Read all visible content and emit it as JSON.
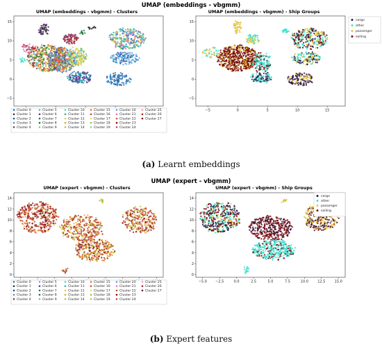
{
  "figure_a": {
    "title": "UMAP (embeddings - vbgmm)",
    "caption_label": "(a)",
    "caption_text": " Learnt embeddings"
  },
  "figure_b": {
    "title": "UMAP (expert - vbgmm)",
    "caption_label": "(b)",
    "caption_text": " Expert features"
  },
  "colors": {
    "cargo": "#2b1647",
    "other": "#3fe0cf",
    "passenger": "#e0c23a",
    "sailing": "#7a0a0a"
  },
  "chart_data": [
    {
      "type": "scatter",
      "id": "emb-clusters",
      "title": "UMAP (embeddings - vbgmm) - Clusters",
      "xlabel": "",
      "ylabel": "",
      "xlim": [
        -7,
        18
      ],
      "ylim": [
        -7,
        16.5
      ],
      "xticks": [
        -5,
        0,
        5,
        10,
        15
      ],
      "yticks": [
        -5,
        0,
        5,
        10,
        15
      ],
      "grid": false,
      "legend_placement": "bottom",
      "legend": [
        "Cluster 0",
        "Cluster 1",
        "Cluster 2",
        "Cluster 3",
        "Cluster 4",
        "Cluster 5",
        "Cluster 6",
        "Cluster 7",
        "Cluster 8",
        "Cluster 9",
        "Cluster 10",
        "Cluster 11",
        "Cluster 12",
        "Cluster 13",
        "Cluster 14",
        "Cluster 15",
        "Cluster 16",
        "Cluster 17",
        "Cluster 18",
        "Cluster 19",
        "Cluster 20",
        "Cluster 21",
        "Cluster 22",
        "Cluster 23",
        "Cluster 24",
        "Cluster 25",
        "Cluster 26",
        "Cluster 27"
      ],
      "legend_colors": [
        "#1f77b4",
        "#2c2c2c",
        "#1a4d7a",
        "#4a90c8",
        "#9b2f2f",
        "#5ab4e0",
        "#6a2f80",
        "#1e7a3a",
        "#2a5d9f",
        "#88cc44",
        "#3fe0cf",
        "#20b2aa",
        "#f5c242",
        "#e8a23a",
        "#c0c030",
        "#f07030",
        "#d04040",
        "#e0e060",
        "#a0c040",
        "#90d060",
        "#60a0e0",
        "#e070c0",
        "#b06030",
        "#8b1010",
        "#c04060",
        "#f0a0d0",
        "#a02020",
        "#7a0a0a"
      ],
      "clusters": [
        {
          "x": -1.5,
          "y": 5.5,
          "rx": 3.2,
          "ry": 3.5,
          "n": 420,
          "colors": [
            "#f07030",
            "#1e7a3a",
            "#5ab4e0",
            "#e8a23a",
            "#9b2f2f",
            "#88cc44"
          ]
        },
        {
          "x": 1.0,
          "y": 5.0,
          "rx": 2.4,
          "ry": 3.2,
          "n": 380,
          "colors": [
            "#f07030",
            "#d04040",
            "#60a0e0",
            "#a0c040",
            "#2a5d9f"
          ]
        },
        {
          "x": 4.0,
          "y": 0.5,
          "rx": 2.0,
          "ry": 1.6,
          "n": 160,
          "colors": [
            "#4a90c8",
            "#2a5d9f",
            "#20b2aa",
            "#6a2f80"
          ]
        },
        {
          "x": 3.5,
          "y": 6.0,
          "rx": 1.6,
          "ry": 2.4,
          "n": 150,
          "colors": [
            "#88cc44",
            "#e0e060",
            "#5ab4e0",
            "#f5c242"
          ]
        },
        {
          "x": 12.0,
          "y": 10.5,
          "rx": 3.0,
          "ry": 2.8,
          "n": 260,
          "colors": [
            "#5ab4e0",
            "#88cc44",
            "#e8a23a",
            "#1f77b4",
            "#20b2aa",
            "#e070c0"
          ]
        },
        {
          "x": 11.5,
          "y": 5.5,
          "rx": 2.4,
          "ry": 1.6,
          "n": 130,
          "colors": [
            "#2a5d9f",
            "#5ab4e0",
            "#60a0e0"
          ]
        },
        {
          "x": 10.5,
          "y": 0.0,
          "rx": 2.0,
          "ry": 1.6,
          "n": 110,
          "colors": [
            "#1f77b4",
            "#4a90c8",
            "#2a5d9f"
          ]
        },
        {
          "x": 2.5,
          "y": 10.5,
          "rx": 1.3,
          "ry": 1.2,
          "n": 80,
          "colors": [
            "#d04040",
            "#6a2f80",
            "#9b2f2f"
          ]
        },
        {
          "x": -2.0,
          "y": 13.0,
          "rx": 0.8,
          "ry": 1.5,
          "n": 50,
          "colors": [
            "#6a2f80",
            "#2c2c2c"
          ]
        },
        {
          "x": -4.5,
          "y": 8.0,
          "rx": 1.2,
          "ry": 1.2,
          "n": 40,
          "colors": [
            "#e070c0",
            "#a02020"
          ]
        },
        {
          "x": -5.5,
          "y": 5.0,
          "rx": 0.5,
          "ry": 0.5,
          "n": 15,
          "colors": [
            "#3fe0cf"
          ]
        },
        {
          "x": 6.0,
          "y": 13.5,
          "rx": 0.6,
          "ry": 0.3,
          "n": 12,
          "colors": [
            "#2c2c2c"
          ]
        },
        {
          "x": 4.5,
          "y": 12.0,
          "rx": 0.4,
          "ry": 0.8,
          "n": 12,
          "colors": [
            "#1e7a3a"
          ]
        }
      ]
    },
    {
      "type": "scatter",
      "id": "emb-groups",
      "title": "UMAP (embeddings - vbgmm) - Ship Groups",
      "xlabel": "",
      "ylabel": "",
      "xlim": [
        -7,
        18
      ],
      "ylim": [
        -7,
        16.5
      ],
      "xticks": [
        -5,
        0,
        5,
        10,
        15
      ],
      "yticks": [
        -5,
        0,
        5,
        10,
        15
      ],
      "grid": false,
      "legend_placement": "outside-right",
      "legend": [
        "cargo",
        "other",
        "passenger",
        "sailing"
      ],
      "clusters": [
        {
          "x": 0.0,
          "y": 5.5,
          "rx": 3.4,
          "ry": 3.4,
          "n": 600,
          "colors": [
            "#7a0a0a",
            "#7a0a0a",
            "#7a0a0a",
            "#e0c23a"
          ]
        },
        {
          "x": 4.0,
          "y": 4.5,
          "rx": 1.6,
          "ry": 2.6,
          "n": 140,
          "colors": [
            "#3fe0cf",
            "#3fe0cf",
            "#7a0a0a"
          ]
        },
        {
          "x": 4.0,
          "y": 0.5,
          "rx": 1.8,
          "ry": 1.4,
          "n": 100,
          "colors": [
            "#3fe0cf",
            "#2b1647"
          ]
        },
        {
          "x": 12.0,
          "y": 10.5,
          "rx": 3.0,
          "ry": 2.8,
          "n": 280,
          "colors": [
            "#2b1647",
            "#e0c23a",
            "#3fe0cf",
            "#7a0a0a"
          ]
        },
        {
          "x": 11.5,
          "y": 5.5,
          "rx": 2.4,
          "ry": 1.6,
          "n": 140,
          "colors": [
            "#2b1647",
            "#e0c23a",
            "#3fe0cf"
          ]
        },
        {
          "x": 10.5,
          "y": 0.0,
          "rx": 2.2,
          "ry": 1.6,
          "n": 140,
          "colors": [
            "#2b1647",
            "#e0c23a",
            "#2b1647"
          ]
        },
        {
          "x": 2.5,
          "y": 10.5,
          "rx": 1.2,
          "ry": 1.2,
          "n": 60,
          "colors": [
            "#e0c23a",
            "#3fe0cf"
          ]
        },
        {
          "x": 0.0,
          "y": 13.5,
          "rx": 0.7,
          "ry": 1.6,
          "n": 40,
          "colors": [
            "#e0c23a"
          ]
        },
        {
          "x": -4.5,
          "y": 7.0,
          "rx": 1.4,
          "ry": 1.4,
          "n": 40,
          "colors": [
            "#e0c23a",
            "#3fe0cf"
          ]
        },
        {
          "x": 8.0,
          "y": 12.5,
          "rx": 0.5,
          "ry": 0.5,
          "n": 20,
          "colors": [
            "#3fe0cf"
          ]
        }
      ]
    },
    {
      "type": "scatter",
      "id": "exp-clusters",
      "title": "UMAP (expert - vbgmm) - Clusters",
      "xlabel": "",
      "ylabel": "",
      "xlim": [
        -6,
        16
      ],
      "ylim": [
        -0.5,
        15
      ],
      "xticks": [
        -5,
        -2.5,
        0,
        2.5,
        5,
        7.5,
        10,
        12.5,
        15
      ],
      "xticklabels": [
        "−5.0",
        "−2.5",
        "0.0",
        "2.5",
        "5.0",
        "7.5",
        "10.0",
        "12.5",
        "15.0"
      ],
      "yticks": [
        0,
        2,
        4,
        6,
        8,
        10,
        12,
        14
      ],
      "grid": false,
      "legend_placement": "bottom",
      "legend": [
        "Cluster 0",
        "Cluster 1",
        "Cluster 2",
        "Cluster 3",
        "Cluster 4",
        "Cluster 5",
        "Cluster 6",
        "Cluster 7",
        "Cluster 8",
        "Cluster 9",
        "Cluster 10",
        "Cluster 11",
        "Cluster 12",
        "Cluster 13",
        "Cluster 14",
        "Cluster 15",
        "Cluster 16",
        "Cluster 17",
        "Cluster 18",
        "Cluster 19",
        "Cluster 20",
        "Cluster 21",
        "Cluster 22",
        "Cluster 23",
        "Cluster 24",
        "Cluster 25",
        "Cluster 26",
        "Cluster 27"
      ],
      "legend_colors": [
        "#1f77b4",
        "#2c2c2c",
        "#1a4d7a",
        "#4a90c8",
        "#9b2f2f",
        "#5ab4e0",
        "#6a2f80",
        "#1e7a3a",
        "#2a5d9f",
        "#88cc44",
        "#3fe0cf",
        "#20b2aa",
        "#f5c242",
        "#e8a23a",
        "#c0c030",
        "#f07030",
        "#d04040",
        "#e0e060",
        "#a0c040",
        "#90d060",
        "#60a0e0",
        "#e070c0",
        "#b06030",
        "#8b1010",
        "#c04060",
        "#f0a0d0",
        "#a02020",
        "#7a0a0a"
      ],
      "clusters": [
        {
          "x": -2.5,
          "y": 10.5,
          "rx": 3.0,
          "ry": 2.8,
          "n": 360,
          "colors": [
            "#a02020",
            "#b06030",
            "#d04040",
            "#e8a23a",
            "#7a0a0a"
          ]
        },
        {
          "x": 4.0,
          "y": 8.5,
          "rx": 3.2,
          "ry": 2.4,
          "n": 320,
          "colors": [
            "#a02020",
            "#b06030",
            "#e8a23a",
            "#c0c030",
            "#d04040"
          ]
        },
        {
          "x": 6.0,
          "y": 4.5,
          "rx": 3.0,
          "ry": 2.0,
          "n": 280,
          "colors": [
            "#7a0a0a",
            "#b06030",
            "#e8a23a",
            "#f07030",
            "#c0c030"
          ]
        },
        {
          "x": 12.5,
          "y": 10.0,
          "rx": 2.6,
          "ry": 2.4,
          "n": 260,
          "colors": [
            "#a02020",
            "#b06030",
            "#e8a23a",
            "#d04040",
            "#c0c030"
          ]
        },
        {
          "x": 1.5,
          "y": 0.8,
          "rx": 0.3,
          "ry": 0.6,
          "n": 15,
          "colors": [
            "#b06030"
          ]
        },
        {
          "x": 7.0,
          "y": 13.5,
          "rx": 0.3,
          "ry": 0.3,
          "n": 10,
          "colors": [
            "#c0c030"
          ]
        }
      ]
    },
    {
      "type": "scatter",
      "id": "exp-groups",
      "title": "UMAP (expert - vbgmm) - Ship Groups",
      "xlabel": "",
      "ylabel": "",
      "xlim": [
        -6,
        16
      ],
      "ylim": [
        -0.5,
        15
      ],
      "xticks": [
        -5,
        -2.5,
        0,
        2.5,
        5,
        7.5,
        10,
        12.5,
        15
      ],
      "xticklabels": [
        "−5.0",
        "−2.5",
        "0.0",
        "2.5",
        "5.0",
        "7.5",
        "10.0",
        "12.5",
        "15.0"
      ],
      "yticks": [
        0,
        2,
        4,
        6,
        8,
        10,
        12,
        14
      ],
      "grid": false,
      "legend_placement": "outside-right",
      "legend": [
        "cargo",
        "other",
        "passenger",
        "sailing"
      ],
      "clusters": [
        {
          "x": -2.5,
          "y": 10.5,
          "rx": 3.0,
          "ry": 2.8,
          "n": 420,
          "colors": [
            "#2b1647",
            "#3fe0cf",
            "#e0c23a",
            "#7a0a0a",
            "#2b1647"
          ]
        },
        {
          "x": 5.0,
          "y": 8.5,
          "rx": 3.2,
          "ry": 2.2,
          "n": 360,
          "colors": [
            "#7a0a0a",
            "#7a0a0a",
            "#2b1647"
          ]
        },
        {
          "x": 5.5,
          "y": 4.5,
          "rx": 3.2,
          "ry": 1.8,
          "n": 340,
          "colors": [
            "#3fe0cf",
            "#3fe0cf",
            "#3fe0cf",
            "#7a0a0a"
          ]
        },
        {
          "x": 12.5,
          "y": 10.5,
          "rx": 2.6,
          "ry": 2.4,
          "n": 300,
          "colors": [
            "#e0c23a",
            "#e0c23a",
            "#2b1647",
            "#7a0a0a"
          ]
        },
        {
          "x": 1.5,
          "y": 0.8,
          "rx": 0.3,
          "ry": 0.6,
          "n": 15,
          "colors": [
            "#3fe0cf"
          ]
        },
        {
          "x": 7.0,
          "y": 13.5,
          "rx": 0.4,
          "ry": 0.3,
          "n": 12,
          "colors": [
            "#e0c23a"
          ]
        }
      ]
    }
  ]
}
